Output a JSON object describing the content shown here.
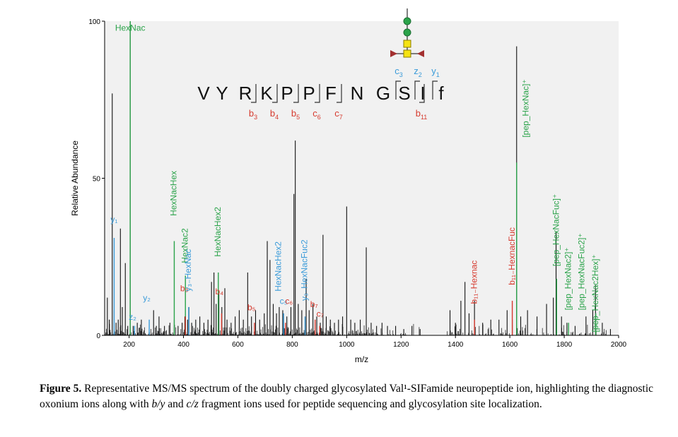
{
  "colors": {
    "green": "#2ba34a",
    "blue": "#3a9bd9",
    "red": "#d63a2e",
    "magenta": "#d6007a",
    "black": "#111111"
  },
  "chart_data": {
    "type": "bar",
    "xlabel": "m/z",
    "ylabel": "Relative Abundance",
    "xlim": [
      110,
      2000
    ],
    "ylim": [
      0,
      100
    ],
    "x_ticks": [
      200,
      400,
      600,
      800,
      1000,
      1200,
      1400,
      1600,
      1800,
      2000
    ],
    "y_ticks": [
      0,
      50,
      100
    ],
    "peaks": [
      {
        "x": 120,
        "y": 12
      },
      {
        "x": 127,
        "y": 5
      },
      {
        "x": 138,
        "y": 77
      },
      {
        "x": 145,
        "y": 8
      },
      {
        "x": 152,
        "y": 4
      },
      {
        "x": 160,
        "y": 5
      },
      {
        "x": 168,
        "y": 34
      },
      {
        "x": 175,
        "y": 9
      },
      {
        "x": 186,
        "y": 23
      },
      {
        "x": 195,
        "y": 3
      },
      {
        "x": 204,
        "y": 100
      },
      {
        "x": 215,
        "y": 3
      },
      {
        "x": 230,
        "y": 4
      },
      {
        "x": 245,
        "y": 5
      },
      {
        "x": 274,
        "y": 2
      },
      {
        "x": 290,
        "y": 8
      },
      {
        "x": 300,
        "y": 3
      },
      {
        "x": 310,
        "y": 6
      },
      {
        "x": 330,
        "y": 3
      },
      {
        "x": 350,
        "y": 4
      },
      {
        "x": 366,
        "y": 5
      },
      {
        "x": 380,
        "y": 3
      },
      {
        "x": 395,
        "y": 4
      },
      {
        "x": 405,
        "y": 6
      },
      {
        "x": 415,
        "y": 5
      },
      {
        "x": 420,
        "y": 9
      },
      {
        "x": 430,
        "y": 4
      },
      {
        "x": 445,
        "y": 5
      },
      {
        "x": 460,
        "y": 6
      },
      {
        "x": 475,
        "y": 4
      },
      {
        "x": 490,
        "y": 5
      },
      {
        "x": 503,
        "y": 17
      },
      {
        "x": 512,
        "y": 20
      },
      {
        "x": 520,
        "y": 10
      },
      {
        "x": 530,
        "y": 14
      },
      {
        "x": 541,
        "y": 9
      },
      {
        "x": 552,
        "y": 15
      },
      {
        "x": 560,
        "y": 5
      },
      {
        "x": 575,
        "y": 4
      },
      {
        "x": 590,
        "y": 6
      },
      {
        "x": 605,
        "y": 8
      },
      {
        "x": 620,
        "y": 5
      },
      {
        "x": 636,
        "y": 20
      },
      {
        "x": 650,
        "y": 6
      },
      {
        "x": 665,
        "y": 8
      },
      {
        "x": 680,
        "y": 5
      },
      {
        "x": 697,
        "y": 7
      },
      {
        "x": 708,
        "y": 30
      },
      {
        "x": 718,
        "y": 24
      },
      {
        "x": 730,
        "y": 10
      },
      {
        "x": 742,
        "y": 7
      },
      {
        "x": 752,
        "y": 9
      },
      {
        "x": 765,
        "y": 8
      },
      {
        "x": 780,
        "y": 6
      },
      {
        "x": 795,
        "y": 9
      },
      {
        "x": 806,
        "y": 45
      },
      {
        "x": 811,
        "y": 62
      },
      {
        "x": 822,
        "y": 10
      },
      {
        "x": 835,
        "y": 8
      },
      {
        "x": 851,
        "y": 18
      },
      {
        "x": 862,
        "y": 8
      },
      {
        "x": 876,
        "y": 10
      },
      {
        "x": 890,
        "y": 6
      },
      {
        "x": 903,
        "y": 4
      },
      {
        "x": 913,
        "y": 32
      },
      {
        "x": 925,
        "y": 6
      },
      {
        "x": 940,
        "y": 5
      },
      {
        "x": 955,
        "y": 4
      },
      {
        "x": 970,
        "y": 5
      },
      {
        "x": 985,
        "y": 6
      },
      {
        "x": 1000,
        "y": 41
      },
      {
        "x": 1015,
        "y": 5
      },
      {
        "x": 1030,
        "y": 4
      },
      {
        "x": 1050,
        "y": 5
      },
      {
        "x": 1072,
        "y": 28
      },
      {
        "x": 1090,
        "y": 4
      },
      {
        "x": 1110,
        "y": 3
      },
      {
        "x": 1130,
        "y": 4
      },
      {
        "x": 1150,
        "y": 3
      },
      {
        "x": 1180,
        "y": 3
      },
      {
        "x": 1210,
        "y": 2
      },
      {
        "x": 1240,
        "y": 3
      },
      {
        "x": 1270,
        "y": 2
      },
      {
        "x": 1380,
        "y": 8
      },
      {
        "x": 1400,
        "y": 4
      },
      {
        "x": 1420,
        "y": 11
      },
      {
        "x": 1435,
        "y": 17
      },
      {
        "x": 1450,
        "y": 7
      },
      {
        "x": 1470,
        "y": 11
      },
      {
        "x": 1500,
        "y": 4
      },
      {
        "x": 1530,
        "y": 5
      },
      {
        "x": 1560,
        "y": 5
      },
      {
        "x": 1590,
        "y": 8
      },
      {
        "x": 1609,
        "y": 5
      },
      {
        "x": 1625,
        "y": 92
      },
      {
        "x": 1640,
        "y": 6
      },
      {
        "x": 1665,
        "y": 8
      },
      {
        "x": 1700,
        "y": 6
      },
      {
        "x": 1735,
        "y": 10
      },
      {
        "x": 1760,
        "y": 12
      },
      {
        "x": 1770,
        "y": 33
      },
      {
        "x": 1790,
        "y": 6
      },
      {
        "x": 1810,
        "y": 4
      },
      {
        "x": 1840,
        "y": 3
      },
      {
        "x": 1880,
        "y": 6
      },
      {
        "x": 1905,
        "y": 8
      },
      {
        "x": 1915,
        "y": 16
      },
      {
        "x": 1940,
        "y": 4
      },
      {
        "x": 1970,
        "y": 2
      }
    ],
    "highlighted_peaks": [
      {
        "x": 204,
        "y": 100,
        "color": "green"
      },
      {
        "x": 366,
        "y": 30,
        "color": "green"
      },
      {
        "x": 407,
        "y": 19,
        "color": "green"
      },
      {
        "x": 528,
        "y": 20,
        "color": "green"
      },
      {
        "x": 1625,
        "y": 55,
        "color": "green"
      },
      {
        "x": 1772,
        "y": 18,
        "color": "green"
      },
      {
        "x": 1816,
        "y": 4,
        "color": "green"
      },
      {
        "x": 1916,
        "y": 7,
        "color": "green"
      },
      {
        "x": 145,
        "y": 31,
        "color": "blue"
      },
      {
        "x": 220,
        "y": 3,
        "color": "blue"
      },
      {
        "x": 274,
        "y": 5,
        "color": "blue"
      },
      {
        "x": 419,
        "y": 9,
        "color": "blue"
      },
      {
        "x": 768,
        "y": 7,
        "color": "blue"
      },
      {
        "x": 847,
        "y": 6,
        "color": "blue"
      },
      {
        "x": 407,
        "y": 6,
        "color": "red"
      },
      {
        "x": 540,
        "y": 7,
        "color": "red"
      },
      {
        "x": 661,
        "y": 4,
        "color": "red"
      },
      {
        "x": 775,
        "y": 4,
        "color": "red"
      },
      {
        "x": 884,
        "y": 5,
        "color": "red"
      },
      {
        "x": 901,
        "y": 3,
        "color": "red"
      },
      {
        "x": 1470,
        "y": 5,
        "color": "red"
      },
      {
        "x": 1609,
        "y": 11,
        "color": "red"
      }
    ],
    "annotations": [
      {
        "text": "HexNac",
        "color": "green",
        "x": 204,
        "y": 97,
        "rot": 0
      },
      {
        "text": "y₁",
        "color": "blue",
        "x": 145,
        "y": 36,
        "rot": 0
      },
      {
        "text": "z₂",
        "color": "blue",
        "x": 213,
        "y": 5,
        "rot": 0
      },
      {
        "text": "y₂",
        "color": "blue",
        "x": 265,
        "y": 11,
        "rot": 0
      },
      {
        "text": "b₃",
        "color": "red",
        "x": 403,
        "y": 14,
        "rot": 0
      },
      {
        "text": "HexNacHex",
        "color": "green",
        "x": 366,
        "y": 38,
        "rot": -90
      },
      {
        "text": "HexNac2",
        "color": "green",
        "x": 407,
        "y": 23,
        "rot": -90
      },
      {
        "text": "y₃₋HexNac",
        "color": "blue",
        "x": 419,
        "y": 14,
        "rot": -90
      },
      {
        "text": "HexNacHex2",
        "color": "green",
        "x": 528,
        "y": 25,
        "rot": -90
      },
      {
        "text": "b₄",
        "color": "red",
        "x": 532,
        "y": 13,
        "rot": 0
      },
      {
        "text": "b₅",
        "color": "red",
        "x": 650,
        "y": 8,
        "rot": 0
      },
      {
        "text": "c₅",
        "color": "blue",
        "x": 768,
        "y": 10,
        "rot": 0
      },
      {
        "text": "c₆",
        "color": "red",
        "x": 788,
        "y": 10,
        "rot": 0
      },
      {
        "text": "HexNacHex2",
        "color": "blue",
        "x": 750,
        "y": 14,
        "rot": -90
      },
      {
        "text": "y₃₋HexNacFuc2",
        "color": "blue",
        "x": 847,
        "y": 11,
        "rot": -90
      },
      {
        "text": "b₇",
        "color": "red",
        "x": 880,
        "y": 9,
        "rot": 0
      },
      {
        "text": "c₇",
        "color": "red",
        "x": 902,
        "y": 6,
        "rot": 0
      },
      {
        "text": "b₁₁₋Hexnac",
        "color": "red",
        "x": 1470,
        "y": 10,
        "rot": -90
      },
      {
        "text": "b₁₁₋HexnacFuc",
        "color": "red",
        "x": 1609,
        "y": 16,
        "rot": -90
      },
      {
        "text": "[pep_HexNac]⁺",
        "color": "green",
        "x": 1660,
        "y": 63,
        "rot": -90
      },
      {
        "text": "[pep_HexNacFuc]⁺",
        "color": "green",
        "x": 1772,
        "y": 22,
        "rot": -90
      },
      {
        "text": "[pep_HexNac2]⁺",
        "color": "green",
        "x": 1816,
        "y": 8,
        "rot": -90
      },
      {
        "text": "[pep_HexNacFuc2]⁺",
        "color": "green",
        "x": 1866,
        "y": 8,
        "rot": -90
      },
      {
        "text": "[pep_HexNac2Hex]⁺",
        "color": "green",
        "x": 1916,
        "y": 1,
        "rot": -90
      }
    ]
  },
  "sequence": {
    "residues": [
      "V",
      "Y",
      "R",
      "K",
      "P",
      "P",
      "F",
      "N",
      "G",
      "S",
      "I",
      "f"
    ],
    "highlight_index": 9,
    "b_labels": [
      "b",
      "3",
      "b",
      "4",
      "b",
      "5",
      "c",
      "6",
      "c",
      "7",
      "b",
      "11"
    ],
    "top_labels": [
      "c",
      "3",
      "z",
      "2",
      "y",
      "1"
    ]
  },
  "caption": {
    "figure_label": "Figure 5.",
    "text": "Representative MS/MS spectrum of the doubly charged glycosylated Val¹-SIFamide neuropeptide ion, highlighting the diagnostic oxonium ions along with ",
    "italic1": "b/y",
    "mid": " and ",
    "italic2": "c/z",
    "end": " fragment ions used for peptide sequencing and glycosylation site localization."
  }
}
